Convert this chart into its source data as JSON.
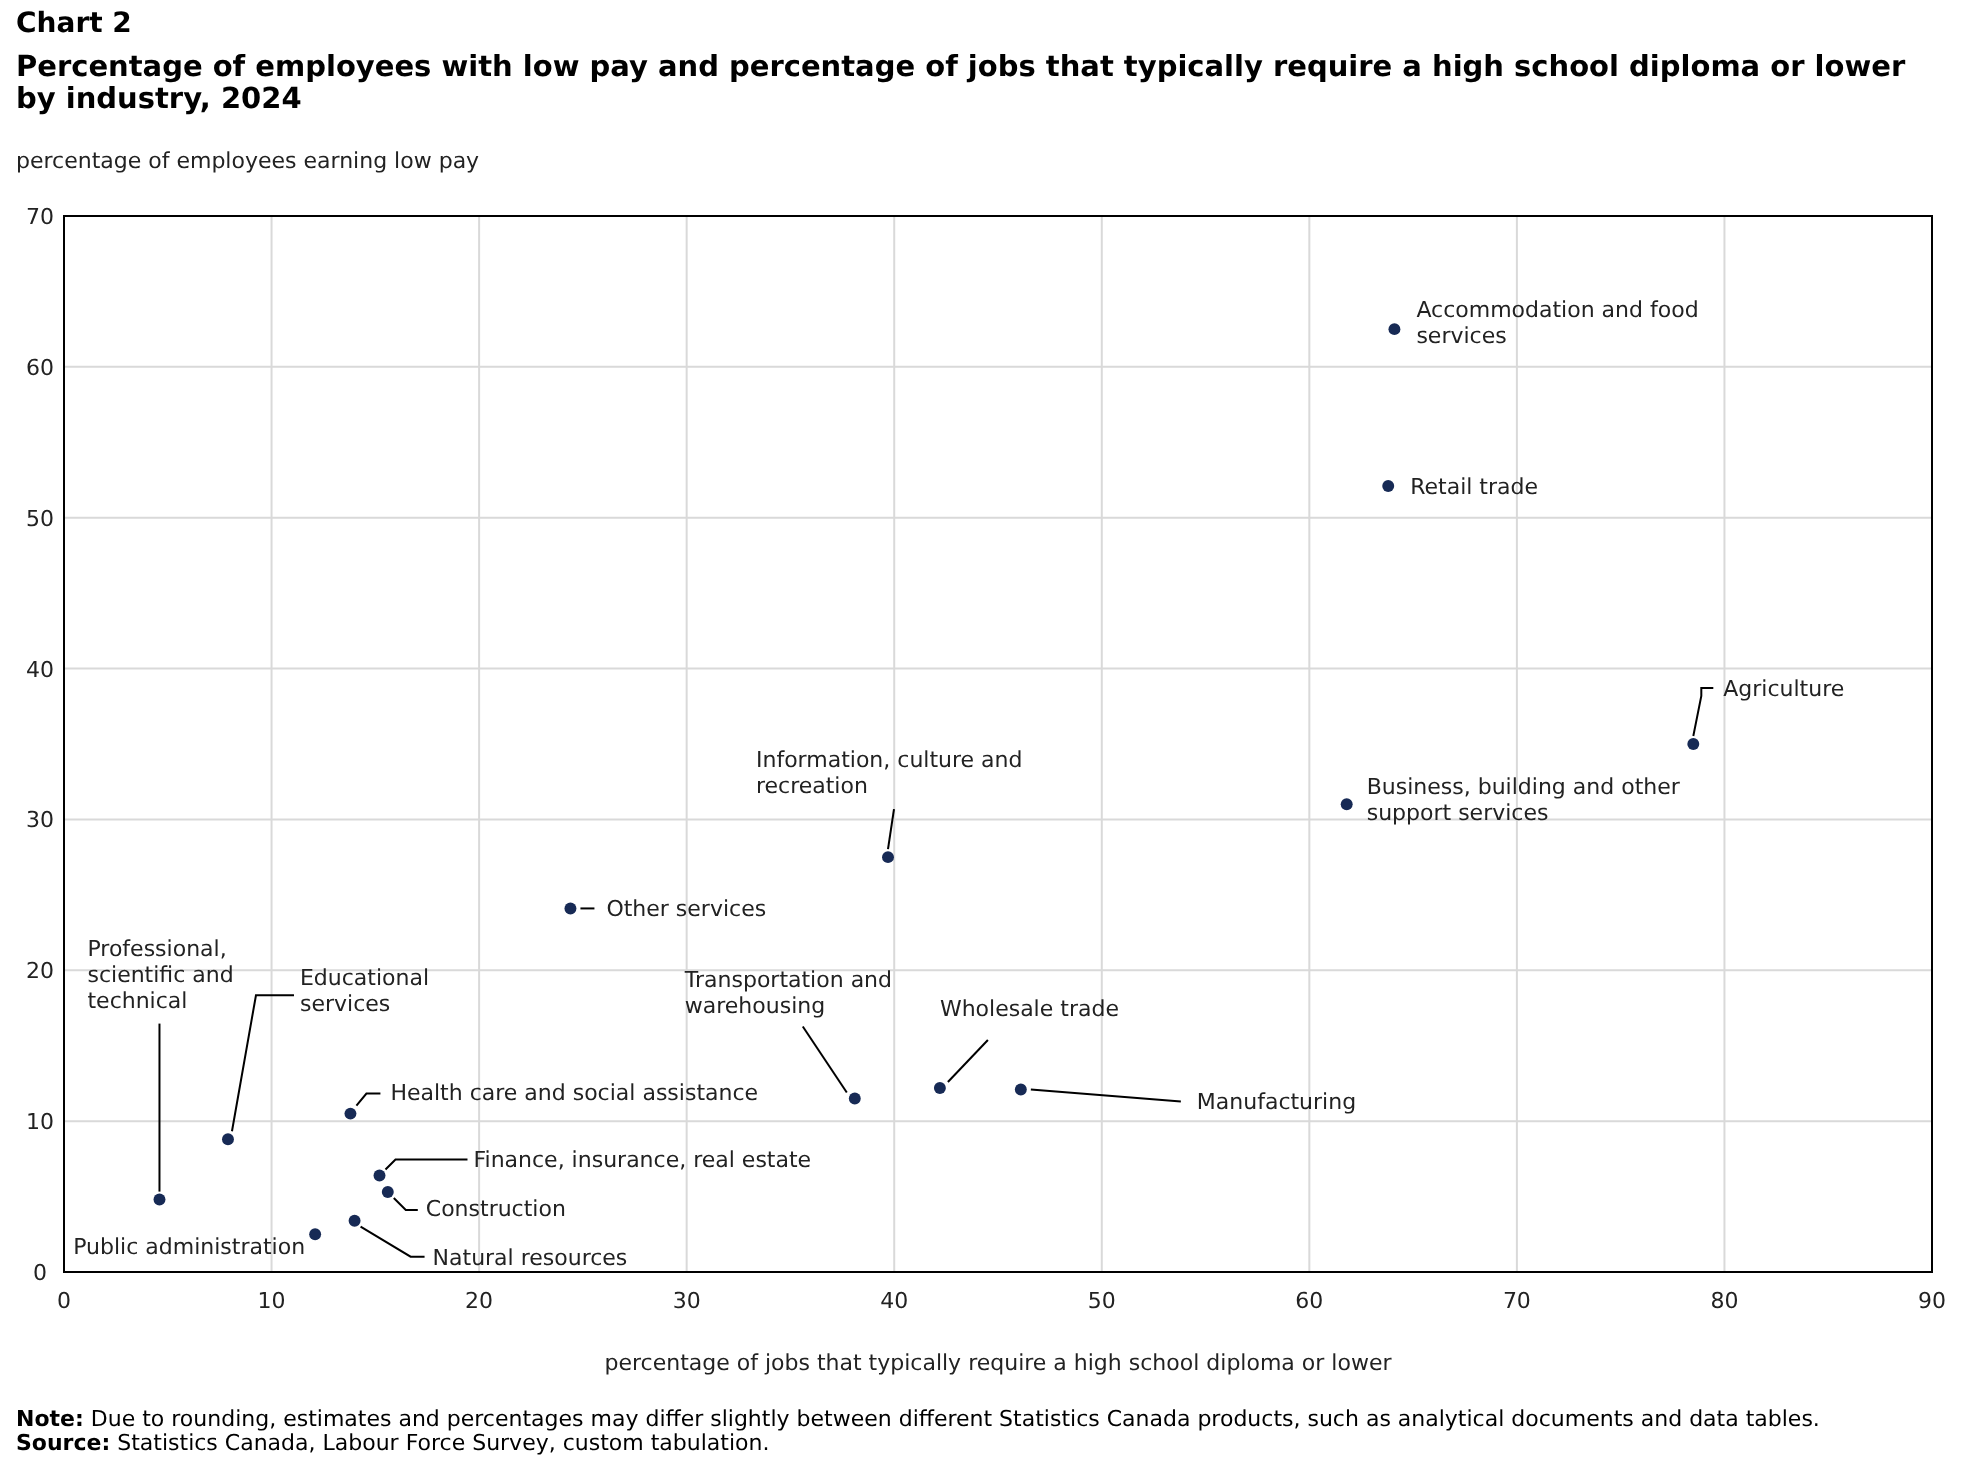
{
  "chart_data": {
    "type": "scatter",
    "title": "Chart 2",
    "subtitle": "Percentage of employees with low pay and percentage of jobs that typically require a high school diploma or lower by industry, 2024",
    "xlabel": "percentage of jobs that typically require a high school diploma or lower",
    "ylabel": "percentage of employees earning low pay",
    "x": [
      64.1,
      63.8,
      78.5,
      61.8,
      39.7,
      24.4,
      38.1,
      42.2,
      46.1,
      13.8,
      7.9,
      4.6,
      15.2,
      15.6,
      14.0,
      12.1
    ],
    "series": [
      {
        "color": "#172a55",
        "values": [
          62.5,
          52.1,
          35.0,
          31.0,
          27.5,
          24.1,
          11.5,
          12.2,
          12.1,
          10.5,
          8.8,
          4.8,
          6.4,
          5.3,
          3.4,
          2.5
        ]
      }
    ],
    "xlim": [
      0,
      90
    ],
    "xticks": [
      0,
      10,
      20,
      30,
      40,
      50,
      60,
      70,
      80,
      90
    ],
    "ylim": [
      0,
      70
    ],
    "yticks": [
      0,
      10,
      20,
      30,
      40,
      50,
      60,
      70
    ],
    "grid": true,
    "marker": "circle",
    "annotations": [
      {
        "text": "Accommodation and food services",
        "x": 64.1,
        "y": 62.5
      },
      {
        "text": "Retail trade",
        "x": 63.8,
        "y": 52.1
      },
      {
        "text": "Agriculture",
        "x": 78.5,
        "y": 35.0
      },
      {
        "text": "Business, building and other support services",
        "x": 61.8,
        "y": 31.0
      },
      {
        "text": "Information, culture and recreation",
        "x": 39.7,
        "y": 27.5
      },
      {
        "text": "Other services",
        "x": 24.4,
        "y": 24.1
      },
      {
        "text": "Transportation and warehousing",
        "x": 38.1,
        "y": 11.5
      },
      {
        "text": "Wholesale trade",
        "x": 42.2,
        "y": 12.2
      },
      {
        "text": "Manufacturing",
        "x": 46.1,
        "y": 12.1
      },
      {
        "text": "Health care and social assistance",
        "x": 13.8,
        "y": 10.5
      },
      {
        "text": "Educational services",
        "x": 7.9,
        "y": 8.8
      },
      {
        "text": "Professional, scientific and technical",
        "x": 4.6,
        "y": 4.8
      },
      {
        "text": "Finance, insurance, real estate",
        "x": 15.2,
        "y": 6.4
      },
      {
        "text": "Construction",
        "x": 15.6,
        "y": 5.3
      },
      {
        "text": "Natural resources",
        "x": 14.0,
        "y": 3.4
      },
      {
        "text": "Public administration",
        "x": 12.1,
        "y": 2.5
      },
      "Note: Due to rounding, estimates and percentages may differ slightly between different Statistics Canada products, such as analytical documents and data tables.",
      "Source: Statistics Canada, Labour Force Survey, custom tabulation."
    ]
  }
}
